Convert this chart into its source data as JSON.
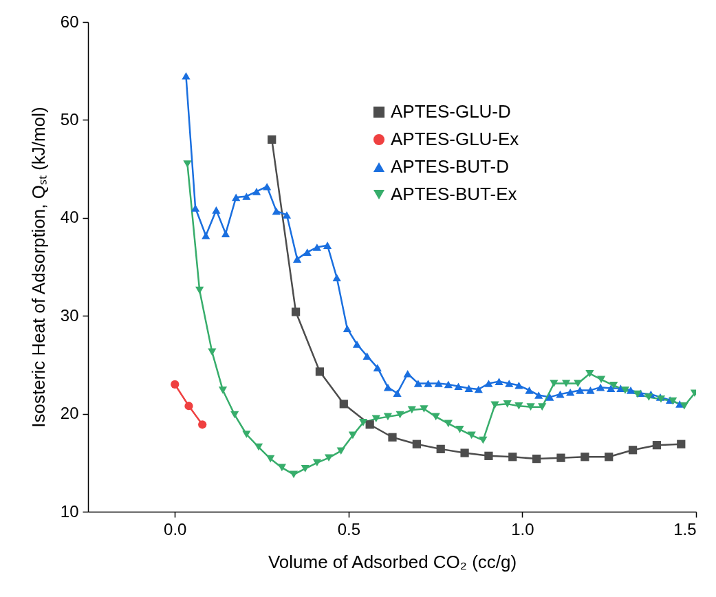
{
  "chart_data": {
    "type": "line",
    "xlabel": "Volume of Adsorbed CO₂ (cc/g)",
    "ylabel": "Isosteric Heat of Adsorption, Qₛₜ (kJ/mol)",
    "xlim": [
      -0.25,
      1.5
    ],
    "xticks": [
      {
        "value": 0,
        "label": "0.0"
      },
      0.5,
      {
        "value": 1,
        "label": "1.0"
      },
      1.5
    ],
    "ylim": [
      10,
      60
    ],
    "yticks": [
      10,
      20,
      30,
      40,
      50,
      60
    ],
    "legend": "top right",
    "series": [
      {
        "name": "APTES-GLU-D",
        "color": "#4d4d4d",
        "marker": "square",
        "x": [
          0.279,
          0.348,
          0.417,
          0.486,
          0.561,
          0.626,
          0.696,
          0.765,
          0.834,
          0.903,
          0.972,
          1.041,
          1.111,
          1.18,
          1.249,
          1.318,
          1.387,
          1.457
        ],
        "values": [
          48.0,
          30.4,
          24.3,
          21.0,
          18.9,
          17.6,
          16.9,
          16.4,
          16.0,
          15.7,
          15.6,
          15.4,
          15.5,
          15.6,
          15.6,
          16.3,
          16.8,
          16.9
        ]
      },
      {
        "name": "APTES-GLU-Ex",
        "color": "#ef4040",
        "marker": "circle",
        "x": [
          0.0,
          0.04,
          0.079
        ],
        "values": [
          23.0,
          20.8,
          18.9
        ]
      },
      {
        "name": "APTES-BUT-D",
        "color": "#1a6fdf",
        "marker": "triangle",
        "x": [
          0.032,
          0.059,
          0.089,
          0.119,
          0.146,
          0.176,
          0.206,
          0.235,
          0.265,
          0.292,
          0.322,
          0.352,
          0.381,
          0.409,
          0.439,
          0.466,
          0.496,
          0.524,
          0.553,
          0.583,
          0.613,
          0.64,
          0.67,
          0.7,
          0.729,
          0.759,
          0.787,
          0.816,
          0.846,
          0.874,
          0.903,
          0.933,
          0.962,
          0.99,
          1.02,
          1.047,
          1.079,
          1.109,
          1.138,
          1.166,
          1.196,
          1.225,
          1.255,
          1.283,
          1.312,
          1.34,
          1.37,
          1.397,
          1.425,
          1.453
        ],
        "values": [
          54.5,
          41.0,
          38.2,
          40.8,
          38.4,
          42.1,
          42.2,
          42.7,
          43.2,
          40.7,
          40.3,
          35.8,
          36.5,
          37.0,
          37.2,
          33.9,
          28.7,
          27.1,
          25.9,
          24.7,
          22.7,
          22.1,
          24.1,
          23.1,
          23.1,
          23.1,
          23.0,
          22.8,
          22.6,
          22.5,
          23.1,
          23.3,
          23.1,
          22.9,
          22.4,
          21.9,
          21.7,
          22.0,
          22.2,
          22.4,
          22.4,
          22.7,
          22.6,
          22.6,
          22.4,
          22.1,
          22.0,
          21.7,
          21.4,
          21.0
        ]
      },
      {
        "name": "APTES-BUT-Ex",
        "color": "#37ad6b",
        "marker": "triangle-down",
        "x": [
          0.036,
          0.071,
          0.107,
          0.138,
          0.172,
          0.206,
          0.241,
          0.275,
          0.308,
          0.342,
          0.375,
          0.409,
          0.443,
          0.478,
          0.512,
          0.542,
          0.579,
          0.613,
          0.648,
          0.682,
          0.717,
          0.751,
          0.787,
          0.82,
          0.854,
          0.887,
          0.921,
          0.957,
          0.99,
          1.024,
          1.057,
          1.091,
          1.126,
          1.16,
          1.194,
          1.227,
          1.263,
          1.296,
          1.332,
          1.364,
          1.399,
          1.433,
          1.466,
          1.496
        ],
        "values": [
          45.5,
          32.6,
          26.3,
          22.4,
          19.9,
          17.9,
          16.6,
          15.4,
          14.5,
          13.8,
          14.4,
          15.0,
          15.5,
          16.2,
          17.8,
          19.1,
          19.5,
          19.7,
          19.9,
          20.4,
          20.5,
          19.7,
          19.0,
          18.4,
          17.8,
          17.3,
          20.9,
          21.0,
          20.8,
          20.7,
          20.7,
          23.1,
          23.1,
          23.1,
          24.1,
          23.5,
          22.9,
          22.4,
          22.0,
          21.7,
          21.5,
          21.3,
          20.8,
          22.1
        ]
      }
    ]
  }
}
